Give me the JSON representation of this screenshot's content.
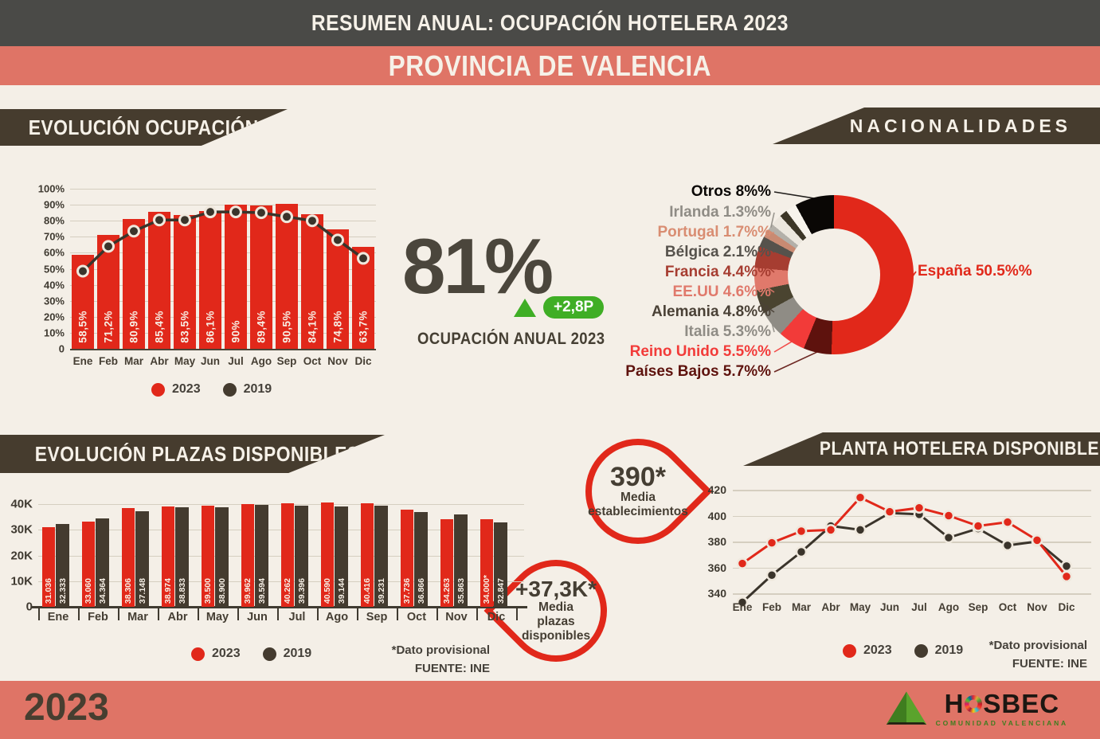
{
  "header": {
    "title_line1": "RESUMEN ANUAL: OCUPACIÓN HOTELERA 2023",
    "title_line2": "PROVINCIA DE VALENCIA"
  },
  "sections": {
    "ocupacion": {
      "banner": "EVOLUCIÓN OCUPACIÓN",
      "legend": [
        "2023",
        "2019"
      ]
    },
    "nacionalidades": {
      "banner": "NACIONALIDADES"
    },
    "plazas": {
      "banner": "EVOLUCIÓN PLAZAS DISPONIBLES",
      "legend": [
        "2023",
        "2019"
      ],
      "footnote1": "*Dato provisional",
      "footnote2": "FUENTE: INE"
    },
    "planta": {
      "banner": "PLANTA HOTELERA DISPONIBLE",
      "legend": [
        "2023",
        "2019"
      ],
      "footnote1": "*Dato provisional",
      "footnote2": "FUENTE: INE"
    }
  },
  "kpi": {
    "value": "81%",
    "delta": "+2,8P",
    "caption": "OCUPACIÓN ANUAL 2023"
  },
  "badges": {
    "establecimientos": {
      "value": "390*",
      "lines": [
        "Media",
        "establecimientos"
      ]
    },
    "plazas": {
      "value": "+37,3K*",
      "lines": [
        "Media",
        "plazas",
        "disponibles"
      ]
    }
  },
  "footer": {
    "year": "2023",
    "brand_h": "H",
    "brand_rest": "SBEC",
    "subtitle": "COMUNIDAD VALENCIANA"
  },
  "colors": {
    "accent_red": "#e1281a",
    "dark_brown": "#463c2e",
    "bar_dark": "#443b2f",
    "salmon": "#df7466",
    "background": "#f4efe7",
    "green": "#3fae25",
    "header_gray": "#4a4a47"
  },
  "chart_data": [
    {
      "id": "evolucion_ocupacion",
      "type": "bar",
      "title": "EVOLUCIÓN OCUPACIÓN",
      "categories": [
        "Ene",
        "Feb",
        "Mar",
        "Abr",
        "May",
        "Jun",
        "Jul",
        "Ago",
        "Sep",
        "Oct",
        "Nov",
        "Dic"
      ],
      "series": [
        {
          "name": "2023",
          "type": "bar",
          "color": "#e1281a",
          "values": [
            58.5,
            71.2,
            80.9,
            85.4,
            83.5,
            86.1,
            90,
            89.4,
            90.5,
            84.1,
            74.8,
            63.7
          ],
          "labels": [
            "58,5%",
            "71,2%",
            "80,9%",
            "85,4%",
            "83,5%",
            "86,1%",
            "90%",
            "89,4%",
            "90,5%",
            "84,1%",
            "74,8%",
            "63,7%"
          ]
        },
        {
          "name": "2019",
          "type": "line",
          "color": "#3a342b",
          "values": [
            48.5,
            64,
            73.5,
            80.5,
            80.5,
            85.5,
            85.5,
            85,
            82.5,
            80,
            68,
            56.5
          ]
        }
      ],
      "ylim": [
        0,
        100
      ],
      "yticks": [
        "100%",
        "90%",
        "80%",
        "70%",
        "60%",
        "50%",
        "40%",
        "30%",
        "20%",
        "10%",
        "0"
      ],
      "grid": true,
      "legend_position": "bottom"
    },
    {
      "id": "nacionalidades",
      "type": "pie",
      "donut": true,
      "title": "NACIONALIDADES",
      "slices": [
        {
          "label": "España",
          "display": "España 50.5%%",
          "value": 50.5,
          "color": "#e1281a",
          "label_color": "#e1281a"
        },
        {
          "label": "Países Bajos",
          "display": "Países Bajos 5.7%%",
          "value": 5.7,
          "color": "#5e120d",
          "label_color": "#5e120d"
        },
        {
          "label": "Reino Unido",
          "display": "Reino Unido 5.5%%",
          "value": 5.5,
          "color": "#f23b39",
          "label_color": "#f23b39"
        },
        {
          "label": "Italia",
          "display": "Italia 5.3%%",
          "value": 5.3,
          "color": "#8f8c85",
          "label_color": "#8f8c85"
        },
        {
          "label": "Alemania",
          "display": "Alemania 4.8%%",
          "value": 4.8,
          "color": "#4a4430",
          "label_color": "#4a4136"
        },
        {
          "label": "EE.UU",
          "display": "EE.UU 4.6%%",
          "value": 4.6,
          "color": "#e0796b",
          "label_color": "#e0796b"
        },
        {
          "label": "Francia",
          "display": "Francia 4.4%%",
          "value": 4.4,
          "color": "#a63d31",
          "label_color": "#a63d31"
        },
        {
          "label": "Bélgica",
          "display": "Bélgica 2.1%%",
          "value": 2.1,
          "color": "#56524c",
          "label_color": "#56524c"
        },
        {
          "label": "Portugal",
          "display": "Portugal 1.7%%",
          "value": 1.7,
          "color": "#c98a72",
          "label_color": "#d98d72"
        },
        {
          "label": "Irlanda",
          "display": "Irlanda 1.3%%",
          "value": 1.3,
          "color": "#b3b0a9",
          "label_color": "#8f8c85"
        },
        {
          "label": "",
          "display": "",
          "value": 2.3,
          "color": "#ece7de",
          "label_color": "#ece7de"
        },
        {
          "label": "",
          "display": "",
          "value": 1.6,
          "color": "#3c3627",
          "label_color": "#3c3627"
        },
        {
          "label": "",
          "display": "",
          "value": 2.2,
          "color": "#f7f3ec",
          "label_color": "#f7f3ec"
        },
        {
          "label": "Otros",
          "display": "Otros 8%%",
          "value": 8,
          "color": "#0a0705",
          "label_color": "#0a0705"
        }
      ]
    },
    {
      "id": "evolucion_plazas",
      "type": "bar",
      "title": "EVOLUCIÓN PLAZAS DISPONIBLES",
      "categories": [
        "Ene",
        "Feb",
        "Mar",
        "Abr",
        "May",
        "Jun",
        "Jul",
        "Ago",
        "Sep",
        "Oct",
        "Nov",
        "Dic"
      ],
      "series": [
        {
          "name": "2023",
          "color": "#e1281a",
          "values": [
            31036,
            33060,
            38306,
            38974,
            39500,
            39962,
            40262,
            40590,
            40416,
            37736,
            34263,
            34000
          ],
          "labels": [
            "31.036",
            "33.060",
            "38.306",
            "38.974",
            "39.500",
            "39.962",
            "40.262",
            "40.590",
            "40.416",
            "37.736",
            "34.263",
            "34.000*"
          ]
        },
        {
          "name": "2019",
          "color": "#443b2f",
          "values": [
            32333,
            34364,
            37148,
            38833,
            38900,
            39594,
            39396,
            39144,
            39231,
            36866,
            35863,
            32847
          ],
          "labels": [
            "32.333",
            "34.364",
            "37.148",
            "38.833",
            "38.900",
            "39.594",
            "39.396",
            "39.144",
            "39.231",
            "36.866",
            "35.863",
            "32.847"
          ]
        }
      ],
      "ylim": [
        0,
        42000
      ],
      "yticks": [
        "40K",
        "30K",
        "20K",
        "10K",
        "0"
      ],
      "footnotes": [
        "*Dato provisional",
        "FUENTE: INE"
      ]
    },
    {
      "id": "planta_hotelera",
      "type": "line",
      "title": "PLANTA HOTELERA DISPONIBLE",
      "categories": [
        "Ene",
        "Feb",
        "Mar",
        "Abr",
        "May",
        "Jun",
        "Jul",
        "Ago",
        "Sep",
        "Oct",
        "Nov",
        "Dic"
      ],
      "series": [
        {
          "name": "2023",
          "color": "#e1281a",
          "values": [
            363,
            379,
            388,
            389,
            414,
            403,
            406,
            400,
            392,
            395,
            381,
            353
          ]
        },
        {
          "name": "2019",
          "color": "#3a342b",
          "values": [
            333,
            354,
            372,
            392,
            389,
            402,
            401,
            383,
            390,
            377,
            380,
            361
          ]
        }
      ],
      "ylim": [
        325,
        425
      ],
      "yticks": [
        420,
        400,
        380,
        360,
        340
      ],
      "footnotes": [
        "*Dato provisional",
        "FUENTE: INE"
      ]
    }
  ]
}
